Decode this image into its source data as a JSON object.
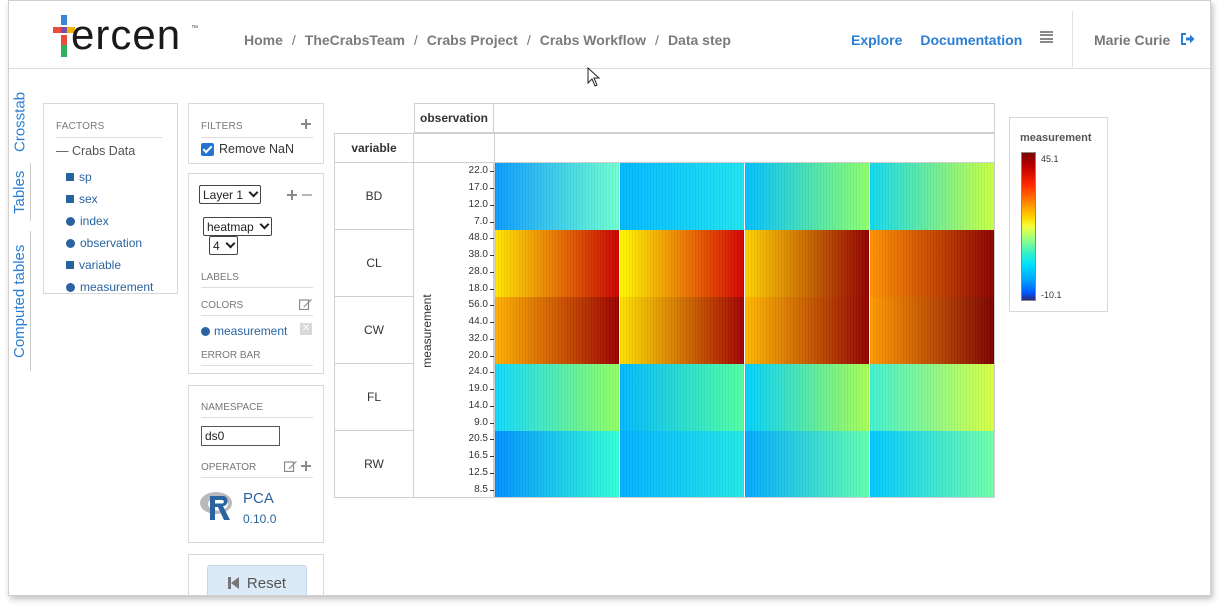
{
  "header": {
    "logo_text": "ercen",
    "logo_tm": "™",
    "breadcrumb": [
      "Home",
      "TheCrabsTeam",
      "Crabs Project",
      "Crabs Workflow",
      "Data step"
    ],
    "breadcrumb_sep": "/",
    "nav": {
      "explore": "Explore",
      "documentation": "Documentation"
    },
    "user": "Marie Curie"
  },
  "side_tabs": [
    "Crosstab",
    "Tables",
    "Computed tables"
  ],
  "factors": {
    "title": "FACTORS",
    "root": "— Crabs Data",
    "items": [
      {
        "label": "sp",
        "kind": "square"
      },
      {
        "label": "sex",
        "kind": "square"
      },
      {
        "label": "index",
        "kind": "dot"
      },
      {
        "label": "observation",
        "kind": "dot"
      },
      {
        "label": "variable",
        "kind": "square"
      },
      {
        "label": "measurement",
        "kind": "dot"
      }
    ]
  },
  "filters": {
    "title": "FILTERS",
    "remove_nan": "Remove NaN",
    "remove_nan_checked": true
  },
  "layer": {
    "layer_select": "Layer 1",
    "chart_select": "heatmap",
    "size_select": "4",
    "labels_title": "LABELS",
    "colors_title": "COLORS",
    "color_factor": "measurement",
    "errorbar_title": "ERROR BAR"
  },
  "namespace": {
    "title": "NAMESPACE",
    "value": "ds0",
    "operator_title": "OPERATOR",
    "operator_name": "PCA",
    "operator_version": "0.10.0"
  },
  "reset_label": "Reset",
  "crosstab": {
    "col_header": "observation",
    "row_header": "variable",
    "y_title": "measurement",
    "rows": [
      {
        "label": "BD",
        "ticks": [
          "22.0",
          "17.0",
          "12.0",
          "7.0"
        ]
      },
      {
        "label": "CL",
        "ticks": [
          "48.0",
          "38.0",
          "28.0",
          "18.0"
        ]
      },
      {
        "label": "CW",
        "ticks": [
          "56.0",
          "44.0",
          "32.0",
          "20.0"
        ]
      },
      {
        "label": "FL",
        "ticks": [
          "24.0",
          "19.0",
          "14.0",
          "9.0"
        ]
      },
      {
        "label": "RW",
        "ticks": [
          "20.5",
          "16.5",
          "12.5",
          "8.5"
        ]
      }
    ]
  },
  "legend": {
    "title": "measurement",
    "max": "45.1",
    "min": "-10.1"
  },
  "heatmap_colors": {
    "BD": [
      [
        "#0a9bff",
        "#6fffd0"
      ],
      [
        "#00b8ff",
        "#1ee4f0"
      ],
      [
        "#00c0ff",
        "#8dff6a"
      ],
      [
        "#10d8f0",
        "#c8ff40"
      ]
    ],
    "CL": [
      [
        "#ffe600",
        "#c80000"
      ],
      [
        "#fff800",
        "#d40000"
      ],
      [
        "#ffd000",
        "#900000"
      ],
      [
        "#ff9000",
        "#8a0000"
      ]
    ],
    "CW": [
      [
        "#ffb000",
        "#9a0000"
      ],
      [
        "#ffe000",
        "#a00000"
      ],
      [
        "#ffb800",
        "#900000"
      ],
      [
        "#ff9a00",
        "#7a0000"
      ]
    ],
    "FL": [
      [
        "#10d8ff",
        "#90ff60"
      ],
      [
        "#00b8ff",
        "#50ffa0"
      ],
      [
        "#00d0ff",
        "#a8ff50"
      ],
      [
        "#40f0d0",
        "#d8ff40"
      ]
    ],
    "RW": [
      [
        "#0090ff",
        "#30ffd8"
      ],
      [
        "#00b0ff",
        "#20e8e8"
      ],
      [
        "#00a8ff",
        "#60ffb0"
      ],
      [
        "#00c8ff",
        "#70ffa8"
      ]
    ]
  }
}
